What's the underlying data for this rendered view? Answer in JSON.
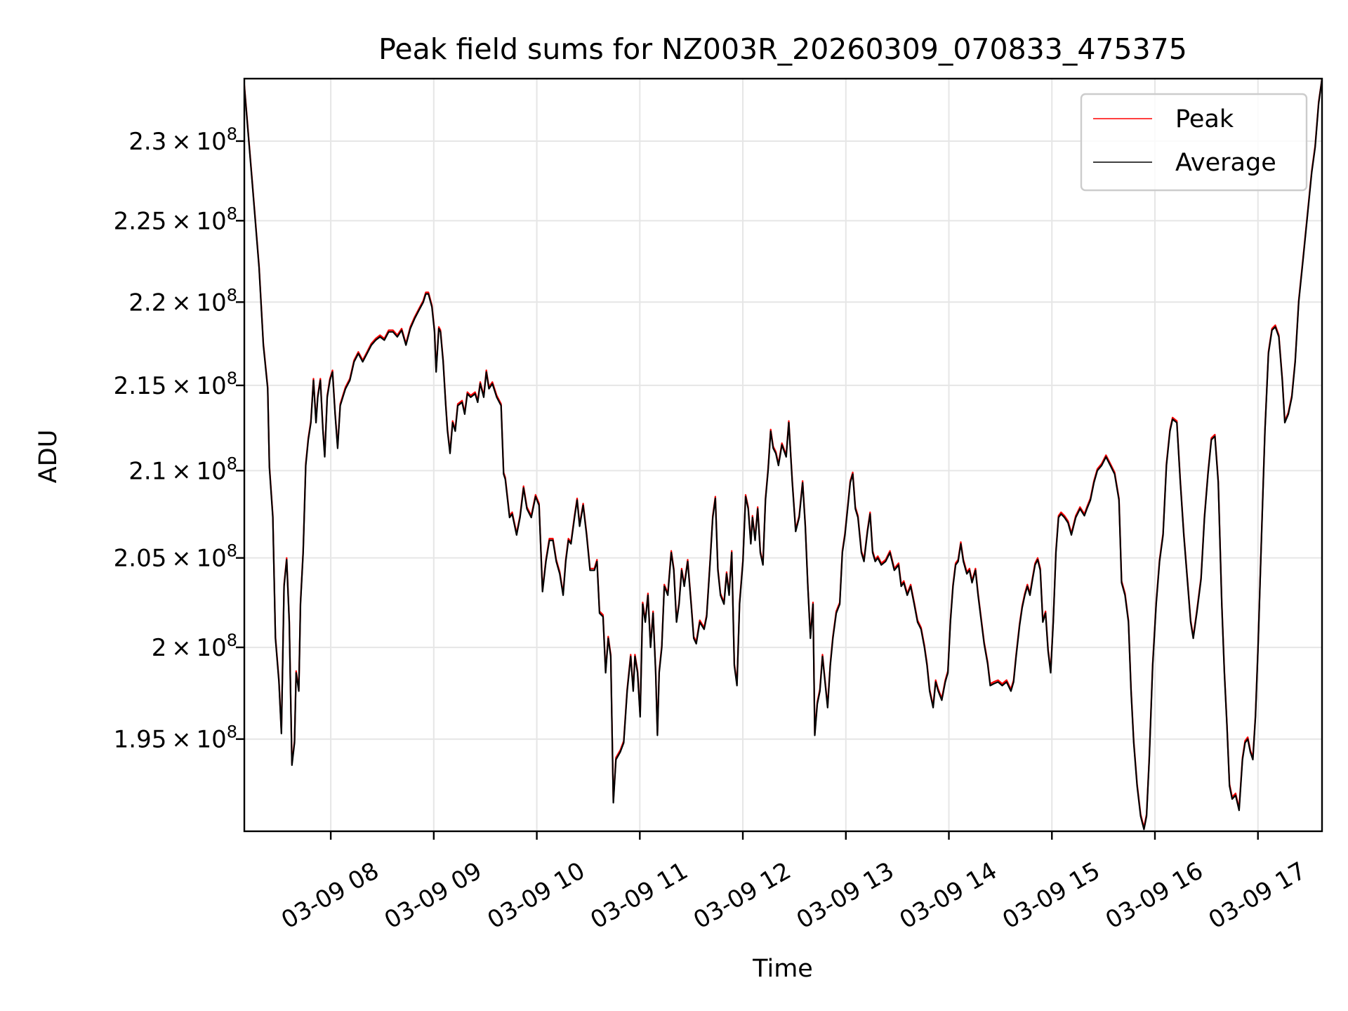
{
  "chart_data": {
    "type": "line",
    "title": "Peak field sums for NZ003R_20260309_070833_475375",
    "xlabel": "Time",
    "ylabel": "ADU",
    "yscale": "log",
    "x_units": "hours of day 2026-03-09",
    "y_units_multiplier": 100000000,
    "xlim": [
      7.161,
      17.622
    ],
    "ylim": [
      1.901,
      2.34
    ],
    "grid": true,
    "legend_location": "upper right",
    "x_ticks": [
      {
        "value": 8,
        "label": "03-09 08"
      },
      {
        "value": 9,
        "label": "03-09 09"
      },
      {
        "value": 10,
        "label": "03-09 10"
      },
      {
        "value": 11,
        "label": "03-09 11"
      },
      {
        "value": 12,
        "label": "03-09 12"
      },
      {
        "value": 13,
        "label": "03-09 13"
      },
      {
        "value": 14,
        "label": "03-09 14"
      },
      {
        "value": 15,
        "label": "03-09 15"
      },
      {
        "value": 16,
        "label": "03-09 16"
      },
      {
        "value": 17,
        "label": "03-09 17"
      }
    ],
    "y_ticks": [
      {
        "value": 2.3,
        "mantissa": "2.3",
        "times": "×",
        "base": "10",
        "exponent": "8"
      },
      {
        "value": 2.25,
        "mantissa": "2.25",
        "times": "×",
        "base": "10",
        "exponent": "8"
      },
      {
        "value": 2.2,
        "mantissa": "2.2",
        "times": "×",
        "base": "10",
        "exponent": "8"
      },
      {
        "value": 2.15,
        "mantissa": "2.15",
        "times": "×",
        "base": "10",
        "exponent": "8"
      },
      {
        "value": 2.1,
        "mantissa": "2.1",
        "times": "×",
        "base": "10",
        "exponent": "8"
      },
      {
        "value": 2.05,
        "mantissa": "2.05",
        "times": "×",
        "base": "10",
        "exponent": "8"
      },
      {
        "value": 2.0,
        "mantissa": "2",
        "times": "×",
        "base": "10",
        "exponent": "8"
      },
      {
        "value": 1.95,
        "mantissa": "1.95",
        "times": "×",
        "base": "10",
        "exponent": "8"
      }
    ],
    "x": [
      7.161,
      7.237,
      7.304,
      7.346,
      7.388,
      7.404,
      7.438,
      7.463,
      7.497,
      7.521,
      7.547,
      7.572,
      7.597,
      7.623,
      7.648,
      7.664,
      7.69,
      7.706,
      7.732,
      7.757,
      7.782,
      7.807,
      7.832,
      7.857,
      7.874,
      7.899,
      7.924,
      7.941,
      7.966,
      7.992,
      8.017,
      8.042,
      8.067,
      8.092,
      8.117,
      8.143,
      8.185,
      8.226,
      8.268,
      8.31,
      8.352,
      8.394,
      8.436,
      8.478,
      8.52,
      8.562,
      8.604,
      8.646,
      8.688,
      8.73,
      8.772,
      8.814,
      8.856,
      8.898,
      8.923,
      8.948,
      8.982,
      9.007,
      9.023,
      9.049,
      9.065,
      9.091,
      9.116,
      9.133,
      9.158,
      9.183,
      9.208,
      9.233,
      9.275,
      9.3,
      9.326,
      9.359,
      9.401,
      9.426,
      9.451,
      9.485,
      9.51,
      9.535,
      9.569,
      9.611,
      9.653,
      9.678,
      9.694,
      9.736,
      9.761,
      9.804,
      9.837,
      9.871,
      9.904,
      9.946,
      9.988,
      10.022,
      10.055,
      10.089,
      10.122,
      10.156,
      10.189,
      10.223,
      10.256,
      10.281,
      10.307,
      10.332,
      10.366,
      10.391,
      10.416,
      10.45,
      10.483,
      10.517,
      10.559,
      10.584,
      10.609,
      10.643,
      10.668,
      10.693,
      10.718,
      10.743,
      10.768,
      10.81,
      10.844,
      10.877,
      10.911,
      10.936,
      10.953,
      10.978,
      11.003,
      11.028,
      11.053,
      11.079,
      11.104,
      11.129,
      11.154,
      11.171,
      11.188,
      11.213,
      11.238,
      11.272,
      11.305,
      11.33,
      11.356,
      11.381,
      11.406,
      11.431,
      11.465,
      11.498,
      11.523,
      11.548,
      11.582,
      11.624,
      11.649,
      11.683,
      11.708,
      11.733,
      11.758,
      11.783,
      11.817,
      11.842,
      11.867,
      11.892,
      11.917,
      11.943,
      11.968,
      12.001,
      12.027,
      12.052,
      12.077,
      12.094,
      12.119,
      12.144,
      12.169,
      12.195,
      12.22,
      12.245,
      12.27,
      12.295,
      12.32,
      12.346,
      12.379,
      12.421,
      12.446,
      12.48,
      12.513,
      12.547,
      12.58,
      12.606,
      12.631,
      12.656,
      12.681,
      12.698,
      12.723,
      12.748,
      12.773,
      12.798,
      12.823,
      12.849,
      12.874,
      12.907,
      12.941,
      12.966,
      12.991,
      13.017,
      13.042,
      13.067,
      13.092,
      13.117,
      13.151,
      13.176,
      13.21,
      13.235,
      13.26,
      13.285,
      13.31,
      13.344,
      13.386,
      13.428,
      13.47,
      13.512,
      13.537,
      13.562,
      13.596,
      13.629,
      13.663,
      13.696,
      13.73,
      13.763,
      13.788,
      13.813,
      13.847,
      13.872,
      13.897,
      13.931,
      13.965,
      13.99,
      14.015,
      14.04,
      14.065,
      14.09,
      14.116,
      14.141,
      14.174,
      14.2,
      14.225,
      14.258,
      14.283,
      14.309,
      14.342,
      14.376,
      14.401,
      14.435,
      14.477,
      14.518,
      14.56,
      14.602,
      14.628,
      14.653,
      14.686,
      14.711,
      14.737,
      14.762,
      14.787,
      14.812,
      14.837,
      14.862,
      14.887,
      14.912,
      14.938,
      14.963,
      14.988,
      15.013,
      15.039,
      15.064,
      15.089,
      15.122,
      15.156,
      15.189,
      15.231,
      15.273,
      15.315,
      15.34,
      15.374,
      15.408,
      15.441,
      15.483,
      15.525,
      15.567,
      15.609,
      15.651,
      15.676,
      15.71,
      15.743,
      15.768,
      15.794,
      15.827,
      15.861,
      15.894,
      15.919,
      15.945,
      15.978,
      16.012,
      16.045,
      16.079,
      16.112,
      16.146,
      16.171,
      16.213,
      16.247,
      16.28,
      16.314,
      16.347,
      16.372,
      16.406,
      16.448,
      16.481,
      16.515,
      16.548,
      16.582,
      16.615,
      16.649,
      16.674,
      16.699,
      16.724,
      16.75,
      16.783,
      16.817,
      16.85,
      16.875,
      16.901,
      16.926,
      16.951,
      16.976,
      17.001,
      17.035,
      17.068,
      17.102,
      17.136,
      17.169,
      17.203,
      17.236,
      17.261,
      17.295,
      17.329,
      17.362,
      17.396,
      17.438,
      17.48,
      17.522,
      17.555,
      17.589,
      17.622
    ],
    "series": [
      {
        "name": "Peak",
        "color": "#ff0000",
        "values": [
          2.336,
          2.275,
          2.222,
          2.175,
          2.149,
          2.103,
          2.074,
          2.006,
          1.982,
          1.954,
          2.035,
          2.05,
          2.015,
          1.937,
          1.949,
          1.987,
          1.977,
          2.025,
          2.054,
          2.104,
          2.119,
          2.129,
          2.154,
          2.129,
          2.144,
          2.154,
          2.124,
          2.109,
          2.144,
          2.154,
          2.159,
          2.134,
          2.114,
          2.139,
          2.144,
          2.149,
          2.154,
          2.165,
          2.17,
          2.165,
          2.17,
          2.175,
          2.178,
          2.18,
          2.178,
          2.183,
          2.183,
          2.18,
          2.184,
          2.175,
          2.185,
          2.191,
          2.196,
          2.201,
          2.206,
          2.206,
          2.198,
          2.183,
          2.159,
          2.185,
          2.183,
          2.165,
          2.139,
          2.124,
          2.111,
          2.129,
          2.124,
          2.139,
          2.141,
          2.134,
          2.146,
          2.144,
          2.146,
          2.141,
          2.152,
          2.144,
          2.159,
          2.149,
          2.152,
          2.144,
          2.139,
          2.099,
          2.096,
          2.074,
          2.076,
          2.064,
          2.074,
          2.091,
          2.079,
          2.074,
          2.086,
          2.081,
          2.032,
          2.049,
          2.061,
          2.061,
          2.049,
          2.042,
          2.03,
          2.049,
          2.061,
          2.059,
          2.074,
          2.084,
          2.069,
          2.081,
          2.064,
          2.044,
          2.044,
          2.049,
          2.02,
          2.018,
          1.987,
          2.006,
          1.996,
          1.917,
          1.94,
          1.944,
          1.949,
          1.977,
          1.996,
          1.977,
          1.996,
          1.987,
          1.963,
          2.025,
          2.015,
          2.03,
          2.001,
          2.02,
          1.987,
          1.953,
          1.987,
          2.001,
          2.035,
          2.03,
          2.054,
          2.044,
          2.015,
          2.025,
          2.044,
          2.035,
          2.049,
          2.025,
          2.006,
          2.003,
          2.015,
          2.011,
          2.018,
          2.049,
          2.074,
          2.085,
          2.044,
          2.03,
          2.025,
          2.042,
          2.03,
          2.054,
          1.991,
          1.98,
          2.025,
          2.049,
          2.086,
          2.079,
          2.059,
          2.074,
          2.061,
          2.079,
          2.054,
          2.047,
          2.084,
          2.101,
          2.124,
          2.114,
          2.111,
          2.104,
          2.116,
          2.109,
          2.129,
          2.094,
          2.066,
          2.074,
          2.094,
          2.069,
          2.035,
          2.006,
          2.025,
          1.953,
          1.97,
          1.977,
          1.996,
          1.982,
          1.968,
          1.991,
          2.006,
          2.02,
          2.025,
          2.054,
          2.064,
          2.079,
          2.094,
          2.099,
          2.079,
          2.074,
          2.054,
          2.049,
          2.066,
          2.076,
          2.054,
          2.049,
          2.051,
          2.047,
          2.049,
          2.054,
          2.044,
          2.047,
          2.035,
          2.037,
          2.03,
          2.035,
          2.025,
          2.015,
          2.011,
          2.001,
          1.991,
          1.977,
          1.968,
          1.982,
          1.977,
          1.972,
          1.982,
          1.987,
          2.015,
          2.035,
          2.047,
          2.049,
          2.059,
          2.049,
          2.042,
          2.044,
          2.037,
          2.044,
          2.03,
          2.018,
          2.003,
          1.992,
          1.98,
          1.981,
          1.982,
          1.98,
          1.982,
          1.977,
          1.982,
          1.996,
          2.013,
          2.023,
          2.03,
          2.035,
          2.03,
          2.039,
          2.047,
          2.05,
          2.044,
          2.015,
          2.02,
          1.999,
          1.987,
          2.015,
          2.054,
          2.074,
          2.076,
          2.074,
          2.071,
          2.064,
          2.074,
          2.079,
          2.075,
          2.079,
          2.084,
          2.094,
          2.101,
          2.104,
          2.109,
          2.104,
          2.099,
          2.084,
          2.037,
          2.03,
          2.015,
          1.977,
          1.949,
          1.926,
          1.91,
          1.903,
          1.91,
          1.94,
          1.991,
          2.025,
          2.049,
          2.064,
          2.104,
          2.124,
          2.131,
          2.129,
          2.094,
          2.064,
          2.039,
          2.015,
          2.006,
          2.02,
          2.039,
          2.074,
          2.099,
          2.119,
          2.121,
          2.094,
          2.025,
          1.987,
          1.958,
          1.926,
          1.919,
          1.921,
          1.913,
          1.94,
          1.949,
          1.951,
          1.944,
          1.94,
          1.963,
          2.001,
          2.064,
          2.124,
          2.17,
          2.184,
          2.186,
          2.18,
          2.154,
          2.129,
          2.134,
          2.144,
          2.165,
          2.201,
          2.227,
          2.254,
          2.281,
          2.297,
          2.325,
          2.34
        ]
      },
      {
        "name": "Average",
        "color": "#000000",
        "values": [
          2.335,
          2.274,
          2.221,
          2.174,
          2.148,
          2.102,
          2.073,
          2.005,
          1.981,
          1.953,
          2.034,
          2.049,
          2.014,
          1.936,
          1.948,
          1.986,
          1.976,
          2.024,
          2.053,
          2.103,
          2.118,
          2.128,
          2.153,
          2.128,
          2.143,
          2.153,
          2.123,
          2.108,
          2.143,
          2.153,
          2.158,
          2.133,
          2.113,
          2.138,
          2.143,
          2.148,
          2.153,
          2.164,
          2.169,
          2.164,
          2.169,
          2.174,
          2.177,
          2.179,
          2.177,
          2.182,
          2.182,
          2.179,
          2.183,
          2.174,
          2.184,
          2.19,
          2.195,
          2.2,
          2.205,
          2.205,
          2.197,
          2.182,
          2.158,
          2.184,
          2.182,
          2.164,
          2.138,
          2.123,
          2.11,
          2.128,
          2.123,
          2.138,
          2.14,
          2.133,
          2.145,
          2.143,
          2.145,
          2.14,
          2.151,
          2.143,
          2.158,
          2.148,
          2.151,
          2.143,
          2.138,
          2.098,
          2.095,
          2.073,
          2.075,
          2.063,
          2.073,
          2.09,
          2.078,
          2.073,
          2.085,
          2.08,
          2.031,
          2.048,
          2.06,
          2.06,
          2.048,
          2.041,
          2.029,
          2.048,
          2.06,
          2.058,
          2.073,
          2.083,
          2.068,
          2.08,
          2.063,
          2.043,
          2.043,
          2.048,
          2.019,
          2.017,
          1.986,
          2.005,
          1.995,
          1.916,
          1.939,
          1.943,
          1.948,
          1.976,
          1.995,
          1.976,
          1.995,
          1.986,
          1.962,
          2.024,
          2.014,
          2.029,
          2.0,
          2.019,
          1.986,
          1.952,
          1.986,
          2.0,
          2.034,
          2.029,
          2.053,
          2.043,
          2.014,
          2.024,
          2.043,
          2.034,
          2.048,
          2.024,
          2.005,
          2.002,
          2.014,
          2.01,
          2.017,
          2.048,
          2.073,
          2.084,
          2.043,
          2.029,
          2.024,
          2.041,
          2.029,
          2.053,
          1.99,
          1.979,
          2.024,
          2.048,
          2.085,
          2.078,
          2.058,
          2.073,
          2.06,
          2.078,
          2.053,
          2.046,
          2.083,
          2.1,
          2.123,
          2.113,
          2.11,
          2.103,
          2.115,
          2.108,
          2.128,
          2.093,
          2.065,
          2.073,
          2.093,
          2.068,
          2.034,
          2.005,
          2.024,
          1.952,
          1.969,
          1.976,
          1.995,
          1.981,
          1.967,
          1.99,
          2.005,
          2.019,
          2.024,
          2.053,
          2.063,
          2.078,
          2.093,
          2.098,
          2.078,
          2.073,
          2.053,
          2.048,
          2.065,
          2.075,
          2.053,
          2.048,
          2.05,
          2.046,
          2.048,
          2.053,
          2.043,
          2.046,
          2.034,
          2.036,
          2.029,
          2.034,
          2.024,
          2.014,
          2.01,
          2.0,
          1.99,
          1.976,
          1.967,
          1.981,
          1.976,
          1.971,
          1.981,
          1.986,
          2.014,
          2.034,
          2.046,
          2.048,
          2.058,
          2.048,
          2.041,
          2.043,
          2.036,
          2.043,
          2.029,
          2.017,
          2.002,
          1.991,
          1.979,
          1.98,
          1.981,
          1.979,
          1.981,
          1.976,
          1.981,
          1.995,
          2.012,
          2.022,
          2.029,
          2.034,
          2.029,
          2.038,
          2.046,
          2.049,
          2.043,
          2.014,
          2.019,
          1.998,
          1.986,
          2.014,
          2.053,
          2.073,
          2.075,
          2.073,
          2.07,
          2.063,
          2.073,
          2.078,
          2.074,
          2.078,
          2.083,
          2.093,
          2.1,
          2.103,
          2.108,
          2.103,
          2.098,
          2.083,
          2.036,
          2.029,
          2.014,
          1.976,
          1.948,
          1.925,
          1.909,
          1.902,
          1.909,
          1.939,
          1.99,
          2.024,
          2.048,
          2.063,
          2.103,
          2.123,
          2.13,
          2.128,
          2.093,
          2.063,
          2.038,
          2.014,
          2.005,
          2.019,
          2.038,
          2.073,
          2.098,
          2.118,
          2.12,
          2.093,
          2.024,
          1.986,
          1.957,
          1.925,
          1.918,
          1.92,
          1.912,
          1.939,
          1.948,
          1.95,
          1.943,
          1.939,
          1.962,
          2.0,
          2.063,
          2.123,
          2.169,
          2.183,
          2.185,
          2.179,
          2.153,
          2.128,
          2.133,
          2.143,
          2.164,
          2.2,
          2.226,
          2.253,
          2.28,
          2.296,
          2.324,
          2.34
        ]
      }
    ]
  }
}
